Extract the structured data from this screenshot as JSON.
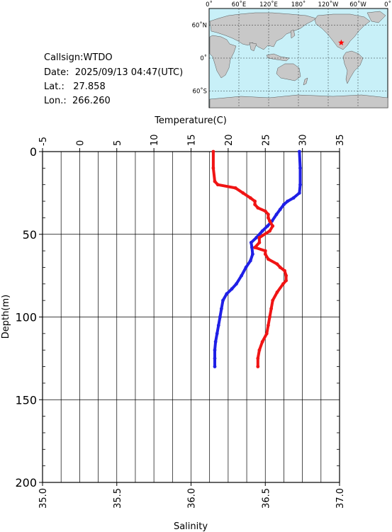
{
  "info": {
    "callsign_label": "Callsign:",
    "callsign": "WTDO",
    "date_label": "Date:",
    "date": "2025/09/13 04:47(UTC)",
    "lat_label": "Lat.:",
    "lat": "27.858",
    "lon_label": "Lon.:",
    "lon": "266.260"
  },
  "map": {
    "lon_ticks": [
      "0˚",
      "60˚E",
      "120˚E",
      "180˚",
      "120˚W",
      "60˚W",
      "0˚"
    ],
    "lat_ticks": [
      "60˚N",
      "0˚",
      "60˚S"
    ],
    "ocean_color": "#c8f0f8",
    "land_color": "#c8c8c8",
    "marker": {
      "lon": 266.26,
      "lat": 27.858,
      "color": "#ff0000",
      "icon": "star-icon"
    }
  },
  "chart_data": {
    "type": "line",
    "xlabel_top": "Temperature(C)",
    "xlabel_bottom": "Salinity",
    "ylabel": "Depth(m)",
    "temperature_ticks": [
      -5,
      0,
      5,
      10,
      15,
      20,
      25,
      30,
      35
    ],
    "temperature_lim": [
      -5,
      35
    ],
    "salinity_ticks": [
      "35.0",
      "35.5",
      "36.0",
      "36.5",
      "37.0"
    ],
    "salinity_lim": [
      35.0,
      37.0
    ],
    "depth_ticks": [
      0,
      50,
      100,
      150,
      200
    ],
    "depth_lim": [
      0,
      200
    ],
    "grid": true,
    "series": [
      {
        "quantity": "temperature",
        "color": "#1f1fe6",
        "depth": [
          0,
          10,
          20,
          25,
          28,
          30,
          32,
          35,
          38,
          42,
          45,
          48,
          52,
          55,
          58,
          62,
          66,
          70,
          75,
          80,
          83,
          86,
          90,
          95,
          100,
          105,
          110,
          115,
          120,
          125,
          130
        ],
        "values": [
          29.6,
          29.7,
          29.7,
          29.6,
          28.8,
          28.0,
          27.5,
          27.0,
          26.5,
          25.9,
          25.3,
          24.6,
          23.8,
          23.1,
          23.2,
          23.3,
          23.0,
          22.4,
          21.8,
          21.1,
          20.5,
          19.8,
          19.3,
          19.1,
          18.9,
          18.7,
          18.5,
          18.3,
          18.2,
          18.2,
          18.2
        ]
      },
      {
        "quantity": "salinity",
        "color": "#f01414",
        "depth": [
          0,
          10,
          18,
          20,
          22,
          25,
          28,
          30,
          32,
          34,
          36,
          38,
          40,
          42,
          45,
          48,
          52,
          55,
          58,
          60,
          62,
          65,
          68,
          70,
          72,
          75,
          78,
          80,
          85,
          90,
          95,
          100,
          105,
          110,
          115,
          120,
          125,
          130
        ],
        "values": [
          36.15,
          36.15,
          36.16,
          36.18,
          36.3,
          36.35,
          36.4,
          36.43,
          36.43,
          36.45,
          36.5,
          36.52,
          36.52,
          36.53,
          36.55,
          36.53,
          36.46,
          36.46,
          36.43,
          36.5,
          36.5,
          36.52,
          36.58,
          36.6,
          36.63,
          36.64,
          36.64,
          36.62,
          36.58,
          36.55,
          36.54,
          36.53,
          36.52,
          36.51,
          36.48,
          36.46,
          36.45,
          36.45
        ]
      }
    ]
  }
}
